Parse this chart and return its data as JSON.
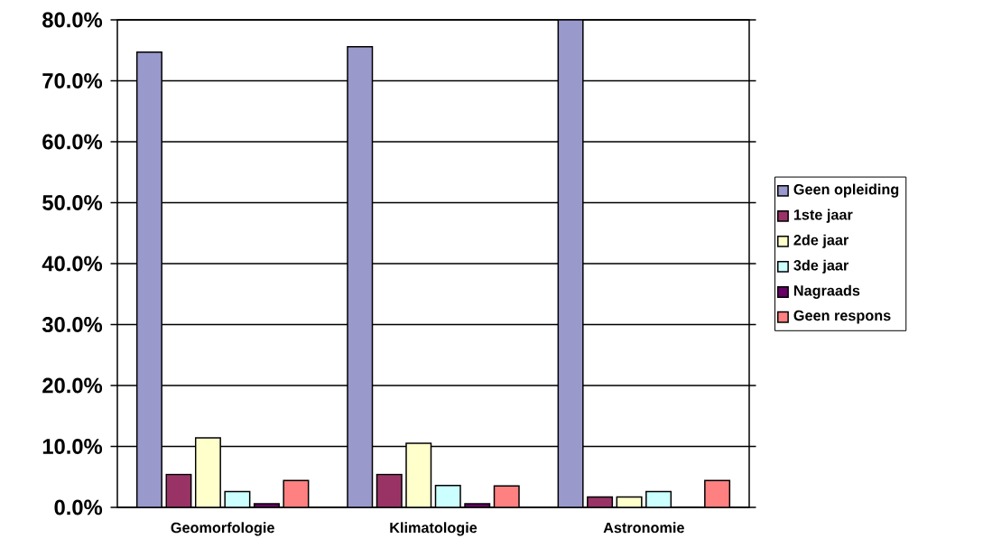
{
  "chart_data": {
    "type": "bar",
    "categories": [
      "Geomorfologie",
      "Klimatologie",
      "Astronomie"
    ],
    "series": [
      {
        "name": "Geen opleiding",
        "color": "#9999cc",
        "values": [
          74.7,
          75.6,
          80.0
        ]
      },
      {
        "name": "1ste jaar",
        "color": "#993366",
        "values": [
          5.4,
          5.4,
          1.7
        ]
      },
      {
        "name": "2de jaar",
        "color": "#ffffcc",
        "values": [
          11.4,
          10.5,
          1.7
        ]
      },
      {
        "name": "3de jaar",
        "color": "#ccffff",
        "values": [
          2.6,
          3.6,
          2.6
        ]
      },
      {
        "name": "Nagraads",
        "color": "#660066",
        "values": [
          0.6,
          0.6,
          0.0
        ]
      },
      {
        "name": "Geen respons",
        "color": "#ff8080",
        "values": [
          4.4,
          3.5,
          4.4
        ]
      }
    ],
    "ylim": [
      0,
      80
    ],
    "yticks": [
      {
        "value": 0,
        "label": "0.0%"
      },
      {
        "value": 10,
        "label": "10.0%"
      },
      {
        "value": 20,
        "label": "20.0%"
      },
      {
        "value": 30,
        "label": "30.0%"
      },
      {
        "value": 40,
        "label": "40.0%"
      },
      {
        "value": 50,
        "label": "50.0%"
      },
      {
        "value": 60,
        "label": "60.0%"
      },
      {
        "value": 70,
        "label": "70.0%"
      },
      {
        "value": 80,
        "label": "80.0%"
      }
    ],
    "grid": "y",
    "legend": "right"
  }
}
